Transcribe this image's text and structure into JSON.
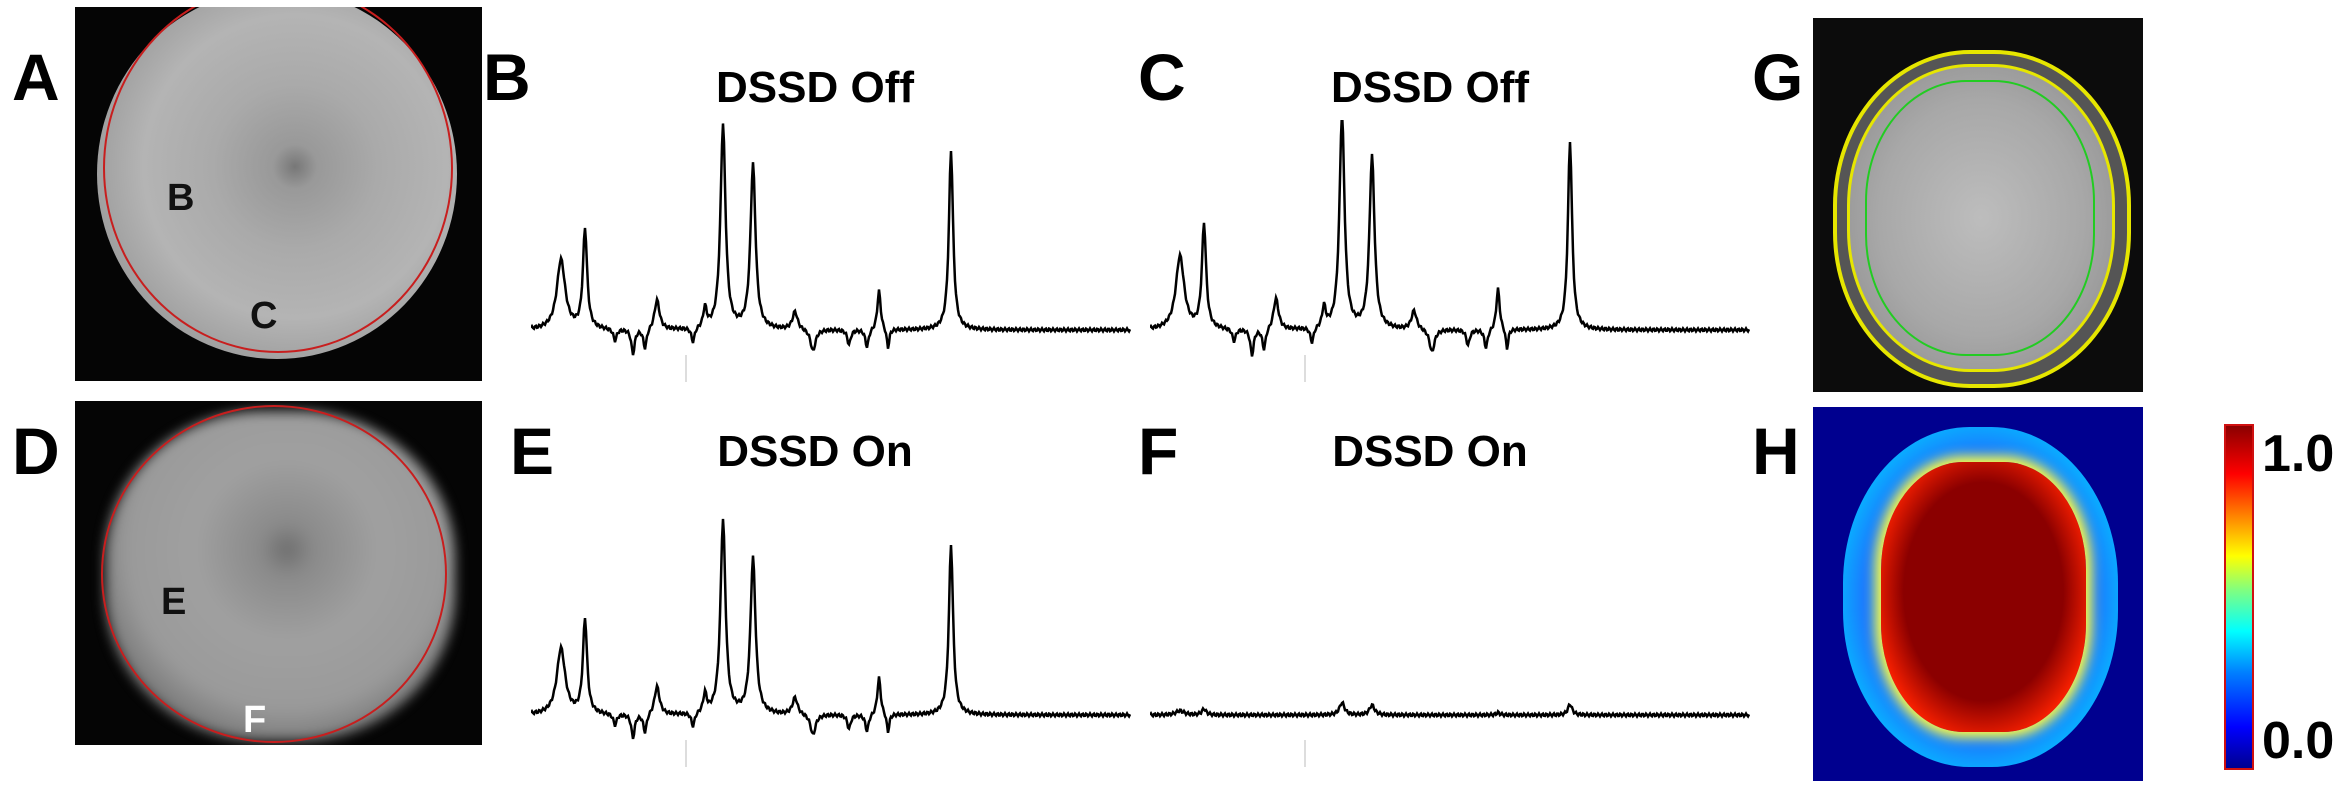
{
  "panels": {
    "A": {
      "label": "A",
      "roi_labels": [
        "B",
        "C"
      ]
    },
    "B": {
      "label": "B",
      "title": "DSSD Off"
    },
    "C": {
      "label": "C",
      "title": "DSSD Off"
    },
    "D": {
      "label": "D",
      "roi_labels": [
        "E",
        "F"
      ]
    },
    "E": {
      "label": "E",
      "title": "DSSD On"
    },
    "F": {
      "label": "F",
      "title": "DSSD On"
    },
    "G": {
      "label": "G"
    },
    "H": {
      "label": "H",
      "colorbar": {
        "max_label": "1.0",
        "min_label": "0.0",
        "colormap": "jet",
        "border_color": "#d01010"
      }
    }
  },
  "colors": {
    "roi_circle": "#c81e1e",
    "outer_contour": "#e6e600",
    "inner_contour": "#22cc22",
    "map_background": "#00008f",
    "spectrum_line": "#000000"
  }
}
